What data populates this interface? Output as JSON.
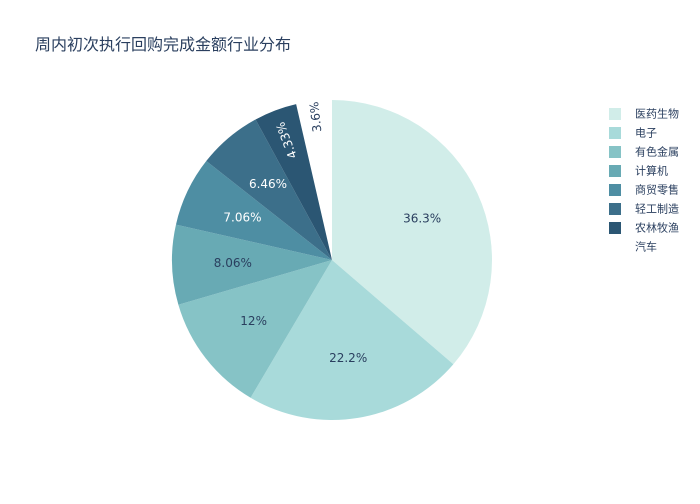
{
  "chart_data": {
    "type": "pie",
    "title": "周内初次执行回购完成金额行业分布",
    "labels": [
      "医药生物",
      "电子",
      "有色金属",
      "计算机",
      "商贸零售",
      "轻工制造",
      "农林牧渔",
      "汽车"
    ],
    "values": [
      36.3,
      22.2,
      12,
      8.06,
      7.06,
      6.46,
      4.33,
      3.6
    ],
    "value_labels": [
      "36.3%",
      "22.2%",
      "12%",
      "8.06%",
      "7.06%",
      "6.46%",
      "4.33%",
      "3.6%"
    ],
    "colors": [
      "#d1ede9",
      "#a8dada",
      "#86c3c6",
      "#68aab4",
      "#4e8ea3",
      "#3c6f8a",
      "#2b5673",
      "#ffffff"
    ],
    "text_colors": [
      "#2a3f5f",
      "#2a3f5f",
      "#2a3f5f",
      "#2a3f5f",
      "#ffffff",
      "#ffffff",
      "#ffffff",
      "#2a3f5f"
    ],
    "direction": "clockwise",
    "start": "12 o'clock",
    "pulled_slice": "汽车",
    "legend_position": "right"
  }
}
